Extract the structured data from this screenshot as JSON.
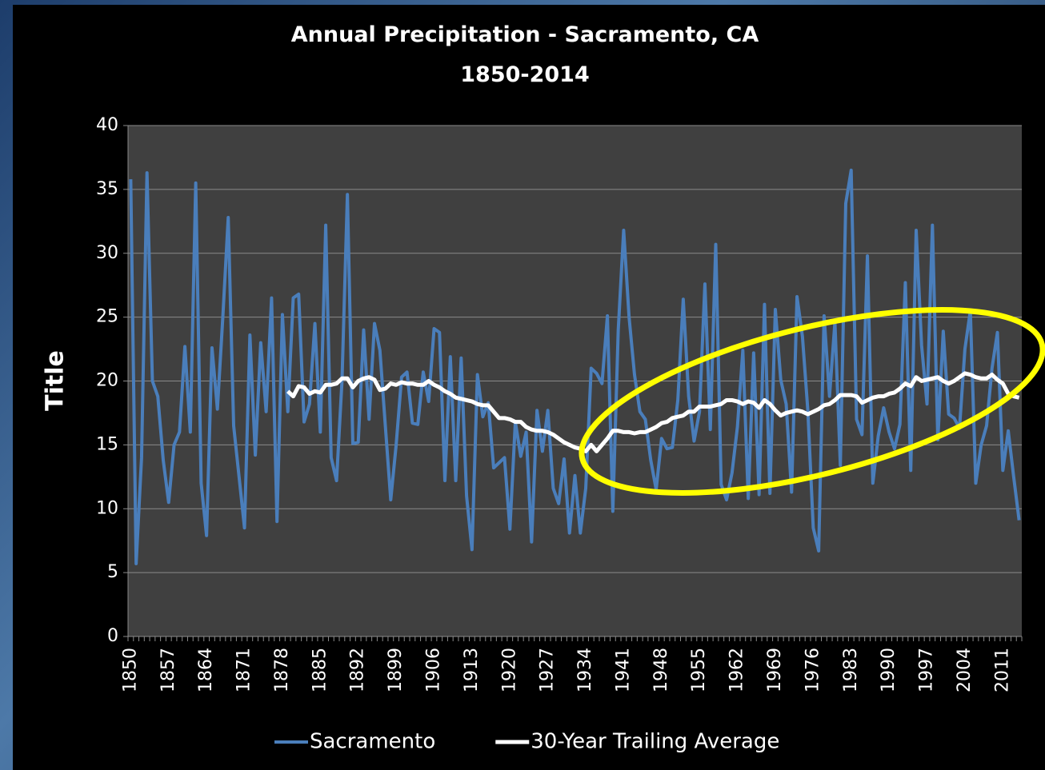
{
  "chart_data": {
    "type": "line",
    "title": "Annual Precipitation - Sacramento, CA",
    "subtitle": "1850-2014",
    "y_label": "Title",
    "categories": [
      "1850",
      null,
      null,
      null,
      null,
      null,
      null,
      "1857",
      null,
      null,
      null,
      null,
      null,
      null,
      "1864",
      null,
      null,
      null,
      null,
      null,
      null,
      "1871",
      null,
      null,
      null,
      null,
      null,
      null,
      "1878",
      null,
      null,
      null,
      null,
      null,
      null,
      "1885",
      null,
      null,
      null,
      null,
      null,
      null,
      "1892",
      null,
      null,
      null,
      null,
      null,
      null,
      "1899",
      null,
      null,
      null,
      null,
      null,
      null,
      "1906",
      null,
      null,
      null,
      null,
      null,
      null,
      "1913",
      null,
      null,
      null,
      null,
      null,
      null,
      "1920",
      null,
      null,
      null,
      null,
      null,
      null,
      "1927",
      null,
      null,
      null,
      null,
      null,
      null,
      "1934",
      null,
      null,
      null,
      null,
      null,
      null,
      "1941",
      null,
      null,
      null,
      null,
      null,
      null,
      "1948",
      null,
      null,
      null,
      null,
      null,
      null,
      "1955",
      null,
      null,
      null,
      null,
      null,
      null,
      "1962",
      null,
      null,
      null,
      null,
      null,
      null,
      "1969",
      null,
      null,
      null,
      null,
      null,
      null,
      "1976",
      null,
      null,
      null,
      null,
      null,
      null,
      "1983",
      null,
      null,
      null,
      null,
      null,
      null,
      "1990",
      null,
      null,
      null,
      null,
      null,
      null,
      "1997",
      null,
      null,
      null,
      null,
      null,
      null,
      "2004",
      null,
      null,
      null,
      null,
      null,
      null,
      "2011",
      null,
      null,
      null
    ],
    "series": [
      {
        "name": "Sacramento",
        "color": "#4a7ebb",
        "width": 4,
        "values": [
          35.8,
          5.7,
          14,
          36.3,
          20,
          18.8,
          13.8,
          10.5,
          15,
          16,
          22.7,
          16,
          35.5,
          12,
          7.9,
          22.6,
          17.8,
          25,
          32.8,
          16.5,
          12.5,
          8.5,
          23.6,
          14.2,
          23,
          17.6,
          26.5,
          9,
          25.2,
          17.6,
          26.5,
          26.8,
          16.8,
          18.2,
          24.5,
          16,
          32.2,
          14,
          12.2,
          20,
          34.6,
          15.1,
          15.2,
          24,
          17,
          24.5,
          22.4,
          16.5,
          10.7,
          15,
          20.3,
          20.7,
          16.7,
          16.6,
          20.7,
          18.4,
          24.1,
          23.8,
          12.2,
          21.9,
          12.2,
          21.8,
          11,
          6.8,
          20.5,
          17.2,
          18.3,
          13.2,
          13.6,
          14,
          8.4,
          16.8,
          14.1,
          16,
          7.4,
          17.7,
          14.5,
          17.7,
          11.6,
          10.4,
          13.9,
          8.1,
          12.6,
          8.1,
          11.6,
          21,
          20.6,
          19.8,
          25.1,
          9.8,
          24,
          31.8,
          25,
          20.5,
          17.6,
          17,
          13.8,
          11.5,
          15.5,
          14.7,
          14.8,
          18.5,
          26.4,
          18.8,
          15.3,
          17.6,
          27.6,
          16.2,
          30.7,
          11.9,
          10.7,
          12.8,
          16.4,
          22.4,
          10.8,
          22.2,
          11.1,
          26,
          11.2,
          25.6,
          20.1,
          18.2,
          11.3,
          26.6,
          23.5,
          17.7,
          8.5,
          6.7,
          25.1,
          18.8,
          24.6,
          13.4,
          33.9,
          36.5,
          17,
          15.8,
          29.8,
          12,
          15.7,
          17.9,
          16,
          14.7,
          16.6,
          27.7,
          13,
          31.8,
          22.8,
          18.2,
          32.2,
          15.4,
          23.9,
          17.4,
          17.1,
          16.3,
          22.5,
          25.5,
          12,
          15,
          16.5,
          21,
          23.8,
          13,
          16.1,
          12.5,
          9.1
        ]
      },
      {
        "name": "30-Year Trailing Average",
        "color": "#ffffff",
        "width": 5,
        "values": [
          null,
          null,
          null,
          null,
          null,
          null,
          null,
          null,
          null,
          null,
          null,
          null,
          null,
          null,
          null,
          null,
          null,
          null,
          null,
          null,
          null,
          null,
          null,
          null,
          null,
          null,
          null,
          null,
          null,
          19.2,
          18.8,
          19.6,
          19.5,
          19,
          19.2,
          19.1,
          19.7,
          19.7,
          19.8,
          20.2,
          20.2,
          19.5,
          20,
          20.2,
          20.3,
          20.1,
          19.3,
          19.4,
          19.8,
          19.7,
          19.9,
          19.8,
          19.8,
          19.7,
          19.7,
          20,
          19.7,
          19.5,
          19.2,
          19,
          18.7,
          18.6,
          18.5,
          18.4,
          18.2,
          18.1,
          18.1,
          17.6,
          17.1,
          17.1,
          17,
          16.8,
          16.8,
          16.4,
          16.2,
          16.1,
          16.1,
          16,
          15.8,
          15.5,
          15.2,
          15,
          14.8,
          14.7,
          14.5,
          15,
          14.5,
          15,
          15.5,
          16.1,
          16.1,
          16,
          16,
          15.9,
          16,
          16,
          16.2,
          16.4,
          16.7,
          16.8,
          17.1,
          17.2,
          17.3,
          17.6,
          17.6,
          18,
          18,
          18,
          18.1,
          18.2,
          18.5,
          18.5,
          18.4,
          18.2,
          18.4,
          18.3,
          17.9,
          18.5,
          18.2,
          17.7,
          17.3,
          17.5,
          17.6,
          17.7,
          17.6,
          17.4,
          17.6,
          17.8,
          18.1,
          18.2,
          18.5,
          18.9,
          18.9,
          18.9,
          18.8,
          18.3,
          18.5,
          18.7,
          18.8,
          18.8,
          19,
          19.1,
          19.4,
          19.8,
          19.6,
          20.3,
          20,
          20.1,
          20.2,
          20.3,
          20,
          19.8,
          20,
          20.3,
          20.6,
          20.5,
          20.3,
          20.2,
          20.2,
          20.5,
          20.1,
          19.8,
          19,
          18.8,
          18.7
        ]
      }
    ],
    "ylim": [
      0,
      40
    ],
    "yticks": [
      0,
      5,
      10,
      15,
      20,
      25,
      30,
      35,
      40
    ],
    "grid": true,
    "legend": "bottom"
  }
}
